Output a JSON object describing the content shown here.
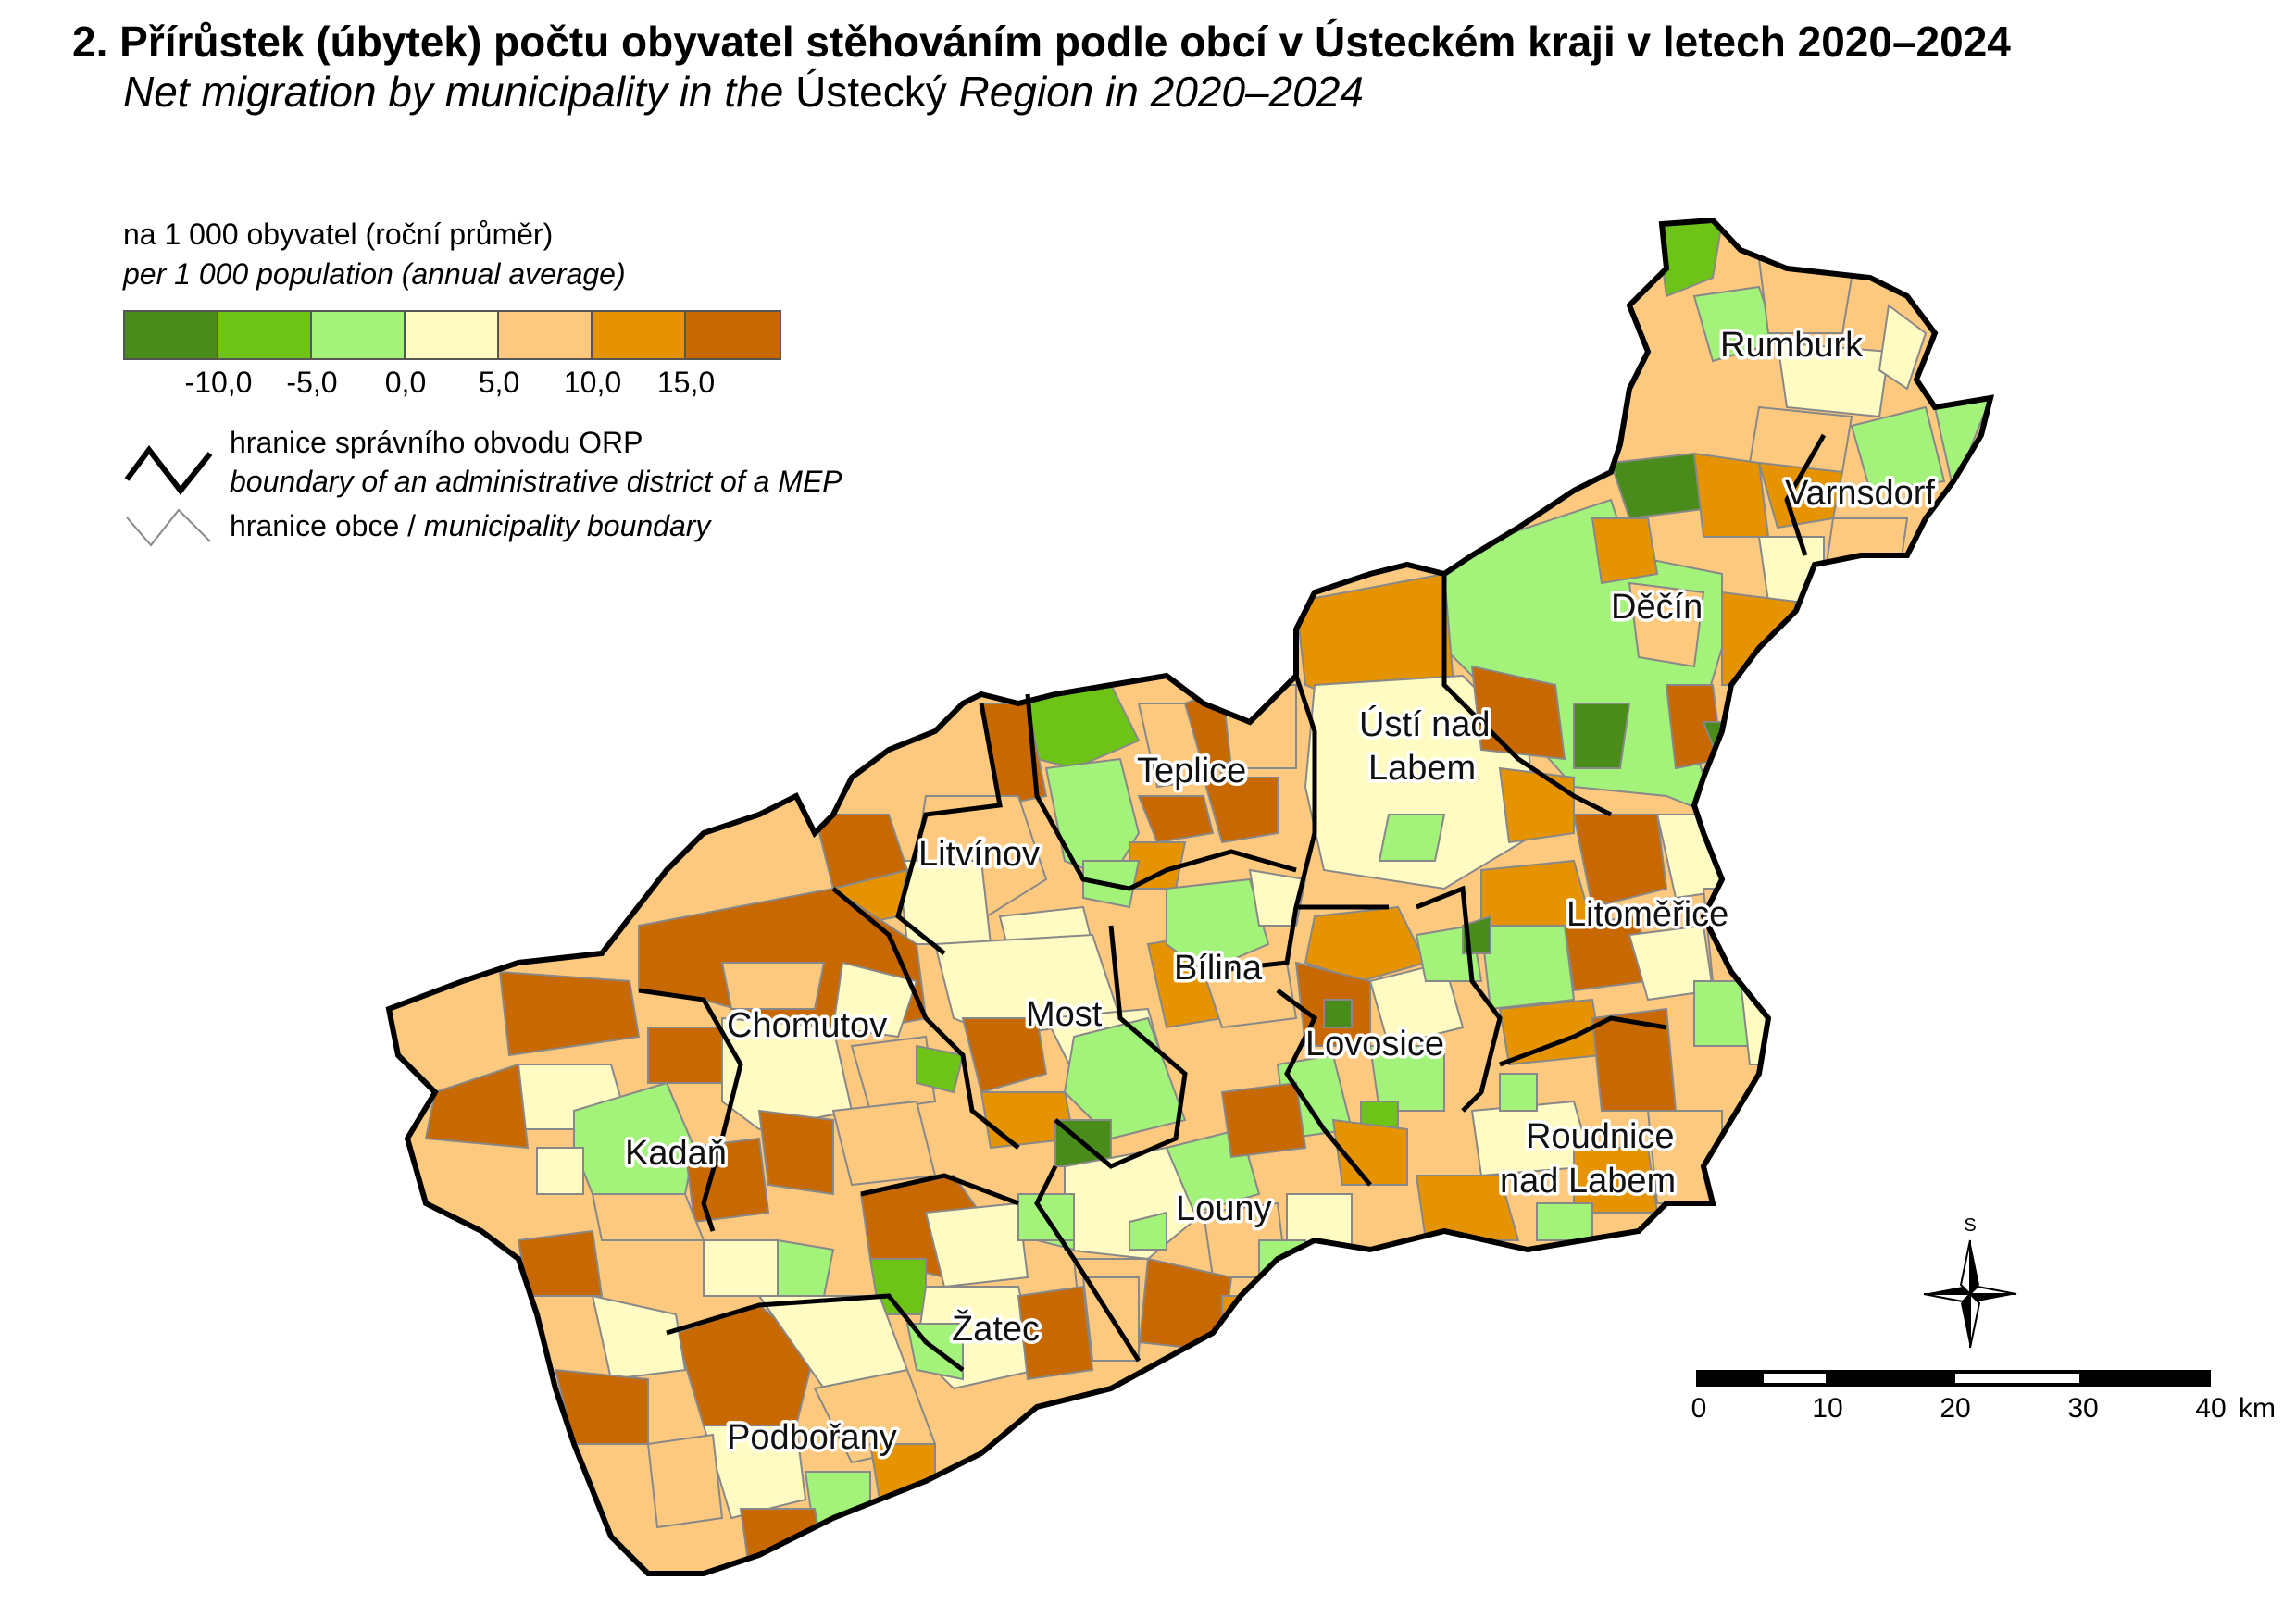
{
  "title": {
    "cz": "2. Přírůstek (úbytek) počtu obyvatel stěhováním podle obcí v Ústeckém kraji v letech 2020–2024",
    "en_part1": "Net migration by municipality in the ",
    "en_part2": "Ústecký",
    "en_part3": " Region in 2020–2024"
  },
  "legend": {
    "unit_cz": "na 1 000 obyvatel (roční průměr)",
    "unit_en": "per 1 000 population (annual average)",
    "classes": [
      {
        "color": "#4a8c1c"
      },
      {
        "color": "#6dc417"
      },
      {
        "color": "#a3f27a"
      },
      {
        "color": "#fffbc2"
      },
      {
        "color": "#fcc97f"
      },
      {
        "color": "#e59300"
      },
      {
        "color": "#c86800"
      }
    ],
    "breaks": [
      "-10,0",
      "-5,0",
      "0,0",
      "5,0",
      "10,0",
      "15,0"
    ],
    "orp_boundary_cz": "hranice správního obvodu ORP",
    "orp_boundary_en": "boundary of an administrative district of a MEP",
    "muni_boundary_cz": "hranice obce / ",
    "muni_boundary_en": "municipality boundary"
  },
  "districts": [
    {
      "name": "Rumburk"
    },
    {
      "name": "Varnsdorf"
    },
    {
      "name": "Děčín"
    },
    {
      "name": "Ústí nad"
    },
    {
      "name": "Labem"
    },
    {
      "name": "Teplice"
    },
    {
      "name": "Litvínov"
    },
    {
      "name": "Litoměřice"
    },
    {
      "name": "Bílina"
    },
    {
      "name": "Most"
    },
    {
      "name": "Chomutov"
    },
    {
      "name": "Lovosice"
    },
    {
      "name": "Kadaň"
    },
    {
      "name": "Roudnice"
    },
    {
      "name": "nad Labem"
    },
    {
      "name": "Louny"
    },
    {
      "name": "Žatec"
    },
    {
      "name": "Podbořany"
    }
  ],
  "north_arrow": {
    "label": "S"
  },
  "scale": {
    "ticks": [
      "0",
      "10",
      "20",
      "30",
      "40"
    ],
    "unit": "km"
  }
}
